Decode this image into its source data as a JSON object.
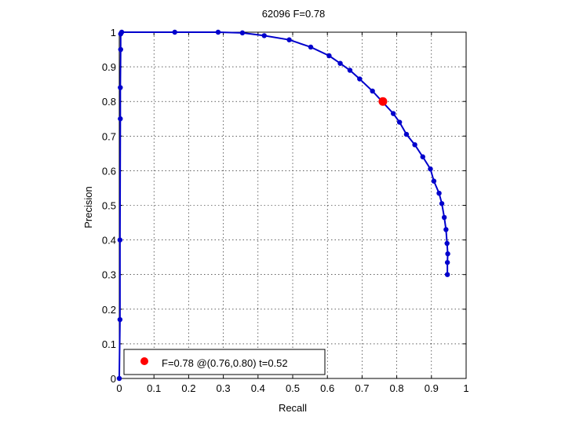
{
  "chart_data": {
    "type": "line",
    "title": "62096 F=0.78",
    "xlabel": "Recall",
    "ylabel": "Precision",
    "xlim": [
      0,
      1
    ],
    "ylim": [
      0,
      1
    ],
    "grid": true,
    "legend_position": "bottom-left",
    "x_ticks": [
      "0",
      "0.1",
      "0.2",
      "0.3",
      "0.4",
      "0.5",
      "0.6",
      "0.7",
      "0.8",
      "0.9",
      "1"
    ],
    "y_ticks": [
      "0",
      "0.1",
      "0.2",
      "0.3",
      "0.4",
      "0.5",
      "0.6",
      "0.7",
      "0.8",
      "0.9",
      "1"
    ],
    "series": [
      {
        "color": "#0000cc",
        "points": [
          [
            0.0,
            0.0
          ],
          [
            0.002,
            0.17
          ],
          [
            0.002,
            0.4
          ],
          [
            0.003,
            0.75
          ],
          [
            0.003,
            0.84
          ],
          [
            0.004,
            0.95
          ],
          [
            0.004,
            0.995
          ],
          [
            0.007,
            1.0
          ],
          [
            0.16,
            1.0
          ],
          [
            0.285,
            1.0
          ],
          [
            0.355,
            0.998
          ],
          [
            0.418,
            0.99
          ],
          [
            0.49,
            0.978
          ],
          [
            0.552,
            0.957
          ],
          [
            0.605,
            0.932
          ],
          [
            0.637,
            0.91
          ],
          [
            0.665,
            0.89
          ],
          [
            0.693,
            0.865
          ],
          [
            0.73,
            0.83
          ],
          [
            0.79,
            0.765
          ],
          [
            0.808,
            0.74
          ],
          [
            0.828,
            0.705
          ],
          [
            0.852,
            0.675
          ],
          [
            0.875,
            0.64
          ],
          [
            0.897,
            0.605
          ],
          [
            0.907,
            0.57
          ],
          [
            0.922,
            0.535
          ],
          [
            0.93,
            0.505
          ],
          [
            0.937,
            0.465
          ],
          [
            0.942,
            0.43
          ],
          [
            0.945,
            0.39
          ],
          [
            0.947,
            0.36
          ],
          [
            0.946,
            0.335
          ],
          [
            0.946,
            0.3
          ]
        ]
      }
    ],
    "highlight": {
      "x": 0.76,
      "y": 0.8,
      "color": "#ff0000"
    },
    "legend": {
      "label": "F=0.78 @(0.76,0.80) t=0.52",
      "color": "#ff0000"
    }
  }
}
